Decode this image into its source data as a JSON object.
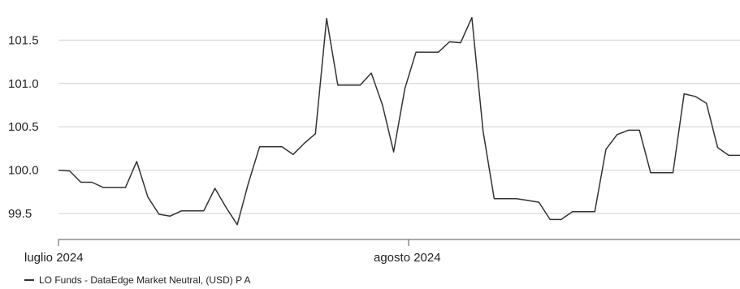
{
  "chart_data": {
    "type": "line",
    "title": "",
    "xlabel": "",
    "ylabel": "",
    "ylim": [
      99.2,
      101.85
    ],
    "y_ticks": [
      99.5,
      100.0,
      100.5,
      101.0,
      101.5
    ],
    "y_tick_labels": [
      "99.5",
      "100.0",
      "100.5",
      "101.0",
      "101.5"
    ],
    "x_tick_labels": [
      "luglio 2024",
      "agosto 2024"
    ],
    "grid": true,
    "legend_position": "bottom-left",
    "colors": {
      "line": "#333333",
      "grid": "#d0d0d0",
      "axis": "#555555"
    },
    "series": [
      {
        "name": "LO Funds - DataEdge Market Neutral, (USD) P A",
        "values": [
          100.0,
          99.99,
          99.86,
          99.86,
          99.8,
          99.8,
          99.8,
          100.1,
          99.69,
          99.49,
          99.47,
          99.53,
          99.53,
          99.53,
          99.79,
          99.57,
          99.37,
          99.85,
          100.27,
          100.27,
          100.27,
          100.18,
          100.31,
          100.42,
          101.75,
          100.98,
          100.98,
          100.98,
          101.12,
          100.75,
          100.21,
          100.94,
          101.36,
          101.36,
          101.36,
          101.48,
          101.47,
          101.76,
          100.45,
          99.67,
          99.67,
          99.67,
          99.65,
          99.63,
          99.43,
          99.43,
          99.52,
          99.52,
          99.52,
          100.24,
          100.41,
          100.46,
          100.46,
          99.97,
          99.97,
          99.97,
          100.88,
          100.85,
          100.77,
          100.26,
          100.17,
          100.17
        ]
      }
    ]
  }
}
